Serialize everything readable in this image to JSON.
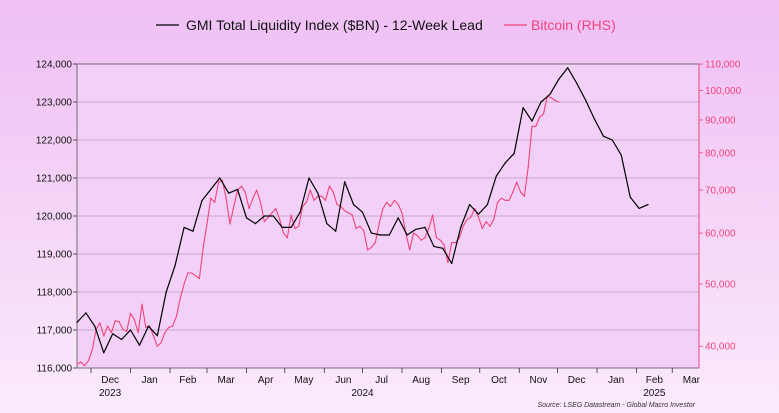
{
  "chart_data": {
    "type": "line",
    "title": "",
    "legend": {
      "placement": "top",
      "items": [
        {
          "label": "GMI Total Liquidity Index ($BN) - 12-Week Lead",
          "color": "#000000"
        },
        {
          "label": "Bitcoin (RHS)",
          "color": "#f0457a"
        }
      ]
    },
    "x_axis": {
      "type": "date",
      "range": [
        "2023-11-20",
        "2025-03-22"
      ],
      "months": [
        {
          "label": "Dec",
          "center": "2023-12-16"
        },
        {
          "label": "Jan",
          "center": "2024-01-16"
        },
        {
          "label": "Feb",
          "center": "2024-02-15"
        },
        {
          "label": "Mar",
          "center": "2024-03-16"
        },
        {
          "label": "Apr",
          "center": "2024-04-16"
        },
        {
          "label": "May",
          "center": "2024-05-16"
        },
        {
          "label": "Jun",
          "center": "2024-06-16"
        },
        {
          "label": "Jul",
          "center": "2024-07-16"
        },
        {
          "label": "Aug",
          "center": "2024-08-16"
        },
        {
          "label": "Sep",
          "center": "2024-09-16"
        },
        {
          "label": "Oct",
          "center": "2024-10-16"
        },
        {
          "label": "Nov",
          "center": "2024-11-16"
        },
        {
          "label": "Dec",
          "center": "2024-12-16"
        },
        {
          "label": "Jan",
          "center": "2025-01-16"
        },
        {
          "label": "Feb",
          "center": "2025-02-15"
        },
        {
          "label": "Mar",
          "center": "2025-03-16"
        }
      ],
      "month_boundaries": [
        "2023-12-01",
        "2024-01-01",
        "2024-02-01",
        "2024-03-01",
        "2024-04-01",
        "2024-05-01",
        "2024-06-01",
        "2024-07-01",
        "2024-08-01",
        "2024-09-01",
        "2024-10-01",
        "2024-11-01",
        "2024-12-01",
        "2025-01-01",
        "2025-02-01",
        "2025-03-01"
      ],
      "years": [
        {
          "label": "2023",
          "center": "2023-12-16"
        },
        {
          "label": "2024",
          "center": "2024-07-01"
        },
        {
          "label": "2025",
          "center": "2025-02-15"
        }
      ]
    },
    "y_left": {
      "min": 116000,
      "max": 124000,
      "ticks": [
        116000,
        117000,
        118000,
        119000,
        120000,
        121000,
        122000,
        123000,
        124000
      ],
      "tick_labels": [
        "116,000",
        "117,000",
        "118,000",
        "119,000",
        "120,000",
        "121,000",
        "122,000",
        "123,000",
        "124,000"
      ],
      "grid": true
    },
    "y_right": {
      "scale": "log",
      "min": 37000,
      "max": 110000,
      "color": "#f0457a",
      "ticks": [
        40000,
        50000,
        60000,
        70000,
        80000,
        90000,
        100000,
        110000
      ],
      "tick_labels": [
        "40,000",
        "50,000",
        "60,000",
        "70,000",
        "80,000",
        "90,000",
        "100,000",
        "110,000"
      ]
    },
    "series": [
      {
        "name": "GMI Total Liquidity Index ($BN) - 12-Week Lead",
        "axis": "left",
        "color": "#000000",
        "x": [
          "2023-11-20",
          "2023-11-27",
          "2023-12-04",
          "2023-12-11",
          "2023-12-18",
          "2023-12-25",
          "2024-01-01",
          "2024-01-08",
          "2024-01-15",
          "2024-01-22",
          "2024-01-29",
          "2024-02-05",
          "2024-02-12",
          "2024-02-19",
          "2024-02-26",
          "2024-03-04",
          "2024-03-11",
          "2024-03-18",
          "2024-03-25",
          "2024-04-01",
          "2024-04-08",
          "2024-04-15",
          "2024-04-22",
          "2024-04-29",
          "2024-05-06",
          "2024-05-13",
          "2024-05-20",
          "2024-05-27",
          "2024-06-03",
          "2024-06-10",
          "2024-06-17",
          "2024-06-24",
          "2024-07-01",
          "2024-07-08",
          "2024-07-15",
          "2024-07-22",
          "2024-07-29",
          "2024-08-05",
          "2024-08-12",
          "2024-08-19",
          "2024-08-26",
          "2024-09-02",
          "2024-09-09",
          "2024-09-16",
          "2024-09-23",
          "2024-09-30",
          "2024-10-07",
          "2024-10-14",
          "2024-10-21",
          "2024-10-28",
          "2024-11-04",
          "2024-11-11",
          "2024-11-18",
          "2024-11-25",
          "2024-12-02",
          "2024-12-09",
          "2024-12-16",
          "2024-12-23",
          "2024-12-30",
          "2025-01-06",
          "2025-01-13",
          "2025-01-20",
          "2025-01-27",
          "2025-02-03",
          "2025-02-10"
        ],
        "values": [
          117200,
          117450,
          117100,
          116400,
          116900,
          116750,
          117000,
          116600,
          117100,
          116850,
          118000,
          118700,
          119700,
          119600,
          120400,
          120700,
          121000,
          120600,
          120700,
          119950,
          119800,
          120000,
          120000,
          119700,
          119700,
          120100,
          121000,
          120600,
          119800,
          119600,
          120900,
          120300,
          120100,
          119550,
          119500,
          119500,
          119950,
          119500,
          119650,
          119700,
          119200,
          119150,
          118750,
          119700,
          120300,
          120050,
          120300,
          121050,
          121400,
          121650,
          122850,
          122500,
          123000,
          123200,
          123600,
          123900,
          123500,
          123050,
          122550,
          122100,
          122000,
          121600,
          120500,
          120200,
          120300
        ]
      },
      {
        "name": "Bitcoin (RHS)",
        "axis": "right",
        "color": "#f0457a",
        "x": [
          "2023-11-20",
          "2023-11-23",
          "2023-11-26",
          "2023-11-29",
          "2023-12-02",
          "2023-12-05",
          "2023-12-08",
          "2023-12-11",
          "2023-12-14",
          "2023-12-17",
          "2023-12-20",
          "2023-12-23",
          "2023-12-26",
          "2023-12-29",
          "2024-01-01",
          "2024-01-04",
          "2024-01-07",
          "2024-01-10",
          "2024-01-13",
          "2024-01-16",
          "2024-01-19",
          "2024-01-22",
          "2024-01-25",
          "2024-01-28",
          "2024-01-31",
          "2024-02-03",
          "2024-02-06",
          "2024-02-09",
          "2024-02-12",
          "2024-02-15",
          "2024-02-18",
          "2024-02-21",
          "2024-02-24",
          "2024-02-27",
          "2024-03-01",
          "2024-03-04",
          "2024-03-07",
          "2024-03-10",
          "2024-03-13",
          "2024-03-16",
          "2024-03-19",
          "2024-03-22",
          "2024-03-25",
          "2024-03-28",
          "2024-03-31",
          "2024-04-03",
          "2024-04-06",
          "2024-04-09",
          "2024-04-12",
          "2024-04-15",
          "2024-04-18",
          "2024-04-21",
          "2024-04-24",
          "2024-04-27",
          "2024-04-30",
          "2024-05-03",
          "2024-05-06",
          "2024-05-09",
          "2024-05-12",
          "2024-05-15",
          "2024-05-18",
          "2024-05-21",
          "2024-05-24",
          "2024-05-27",
          "2024-05-30",
          "2024-06-02",
          "2024-06-05",
          "2024-06-08",
          "2024-06-11",
          "2024-06-14",
          "2024-06-17",
          "2024-06-20",
          "2024-06-23",
          "2024-06-26",
          "2024-06-29",
          "2024-07-02",
          "2024-07-05",
          "2024-07-08",
          "2024-07-11",
          "2024-07-14",
          "2024-07-17",
          "2024-07-20",
          "2024-07-23",
          "2024-07-26",
          "2024-07-29",
          "2024-08-01",
          "2024-08-04",
          "2024-08-07",
          "2024-08-10",
          "2024-08-13",
          "2024-08-16",
          "2024-08-19",
          "2024-08-22",
          "2024-08-25",
          "2024-08-28",
          "2024-08-31",
          "2024-09-03",
          "2024-09-06",
          "2024-09-09",
          "2024-09-12",
          "2024-09-15",
          "2024-09-18",
          "2024-09-21",
          "2024-09-24",
          "2024-09-27",
          "2024-09-30",
          "2024-10-03",
          "2024-10-06",
          "2024-10-09",
          "2024-10-12",
          "2024-10-15",
          "2024-10-18",
          "2024-10-21",
          "2024-10-24",
          "2024-10-27",
          "2024-10-30",
          "2024-11-02",
          "2024-11-05",
          "2024-11-08",
          "2024-11-11",
          "2024-11-14",
          "2024-11-17",
          "2024-11-20",
          "2024-11-23",
          "2024-11-26",
          "2024-11-29",
          "2024-12-02"
        ],
        "values": [
          37500,
          37800,
          37300,
          38000,
          39500,
          42500,
          43500,
          41500,
          43000,
          42000,
          43800,
          43700,
          42500,
          42200,
          45000,
          44000,
          42000,
          46500,
          42800,
          43000,
          41500,
          40000,
          40500,
          42000,
          42800,
          43000,
          44500,
          47500,
          50000,
          52000,
          52000,
          51500,
          51000,
          57000,
          62000,
          68000,
          67000,
          72000,
          72500,
          68000,
          62000,
          66000,
          70000,
          71000,
          69500,
          65500,
          68000,
          70000,
          67000,
          62500,
          63500,
          64500,
          65500,
          63000,
          60000,
          59000,
          64000,
          61000,
          61500,
          66000,
          67000,
          70000,
          67500,
          68500,
          68500,
          67500,
          71000,
          69500,
          66500,
          66000,
          65000,
          64500,
          64000,
          61000,
          61500,
          60500,
          56500,
          57000,
          58000,
          62000,
          65500,
          67000,
          66000,
          67500,
          66500,
          64500,
          60000,
          56500,
          60000,
          59500,
          58500,
          59000,
          61000,
          64000,
          59000,
          58500,
          57500,
          54000,
          58000,
          58000,
          59000,
          61500,
          63000,
          63500,
          65500,
          63500,
          61000,
          62500,
          61500,
          63000,
          67000,
          68000,
          67500,
          67500,
          69500,
          72000,
          69500,
          68500,
          76000,
          88000,
          88000,
          91000,
          92000,
          98000,
          97500,
          96500,
          96000
        ]
      }
    ],
    "footnote": "Source: LSEG Datastream - Global Macro Investor"
  }
}
